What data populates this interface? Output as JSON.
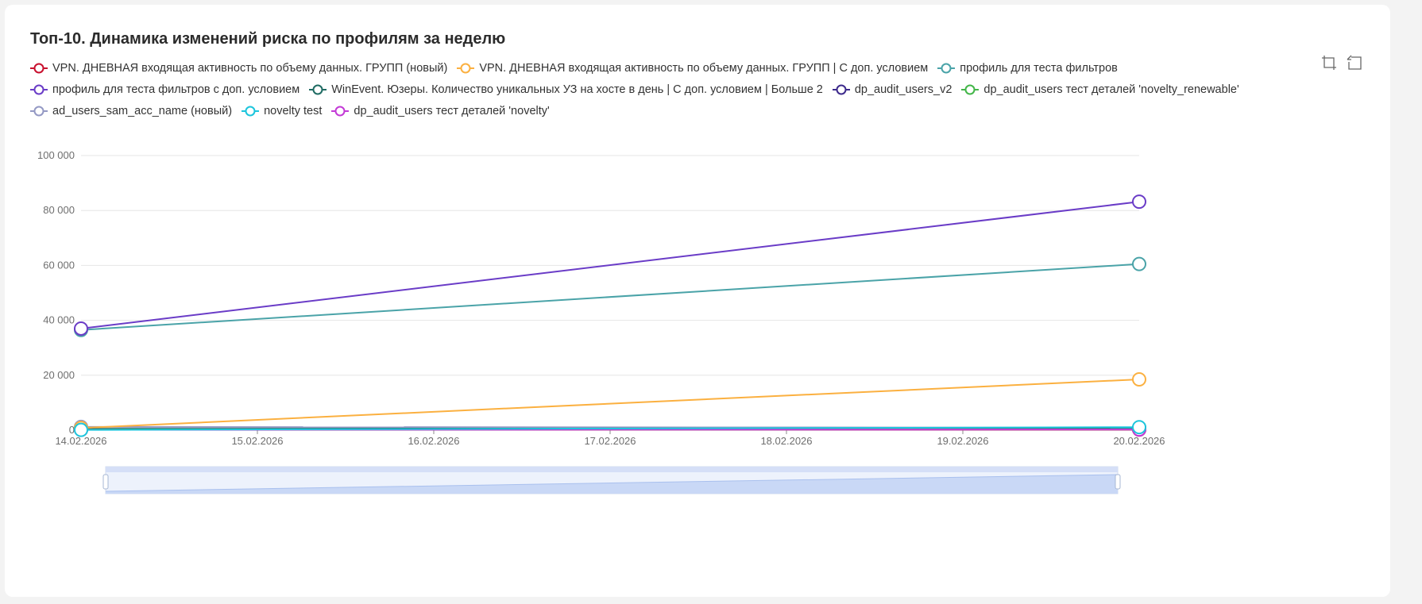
{
  "title": "Топ-10. Динамика изменений риска по профилям за неделю",
  "toolbox": {
    "zoom_icon": "zoom-area-icon",
    "restore_icon": "restore-icon"
  },
  "chart_data": {
    "type": "line",
    "title": "Топ-10. Динамика изменений риска по профилям за неделю",
    "xlabel": "",
    "ylabel": "",
    "categories": [
      "14.02.2026",
      "15.02.2026",
      "16.02.2026",
      "17.02.2026",
      "18.02.2026",
      "19.02.2026",
      "20.02.2026"
    ],
    "ylim": [
      0,
      100000
    ],
    "yticks": [
      0,
      20000,
      40000,
      60000,
      80000,
      100000
    ],
    "ytick_labels": [
      "0",
      "20 000",
      "40 000",
      "60 000",
      "80 000",
      "100 000"
    ],
    "grid": true,
    "legend_position": "top",
    "dataZoom": true,
    "series": [
      {
        "name": "VPN. ДНЕВНАЯ входящая активность по объему данных. ГРУПП (новый)",
        "color": "#c8102e",
        "points": [
          [
            0,
            300
          ],
          [
            6,
            200
          ]
        ]
      },
      {
        "name": "VPN. ДНЕВНАЯ входящая активность по объему данных. ГРУПП | С доп. условием",
        "color": "#fbb040",
        "points": [
          [
            0,
            800
          ],
          [
            6,
            18500
          ]
        ]
      },
      {
        "name": "профиль для теста фильтров",
        "color": "#4aa3a8",
        "points": [
          [
            0,
            36500
          ],
          [
            6,
            60500
          ]
        ]
      },
      {
        "name": "профиль для теста фильтров с доп. условием",
        "color": "#6a3cc7",
        "points": [
          [
            0,
            37000
          ],
          [
            6,
            83200
          ]
        ]
      },
      {
        "name": "WinEvent. Юзеры. Количество уникальных УЗ на хосте в день | С доп. условием | Больше 2",
        "color": "#1f6b63",
        "points": [
          [
            0,
            500
          ],
          [
            6,
            700
          ]
        ]
      },
      {
        "name": "dp_audit_users_v2",
        "color": "#3d2a8c",
        "points": [
          [
            0,
            400
          ],
          [
            6,
            600
          ]
        ]
      },
      {
        "name": "dp_audit_users тест деталей 'novelty_renewable'",
        "color": "#43b649",
        "points": [
          [
            0,
            200
          ],
          [
            6,
            300
          ]
        ]
      },
      {
        "name": "ad_users_sam_acc_name (новый)",
        "color": "#9499c4",
        "points": [
          [
            0,
            1200
          ],
          [
            6,
            900
          ]
        ]
      },
      {
        "name": "novelty test",
        "color": "#1cc5dc",
        "points": [
          [
            0,
            100
          ],
          [
            6,
            1100
          ]
        ]
      },
      {
        "name": "dp_audit_users тест деталей 'novelty'",
        "color": "#c33ad6",
        "points": [
          [
            0,
            150
          ],
          [
            6,
            250
          ]
        ]
      }
    ]
  }
}
